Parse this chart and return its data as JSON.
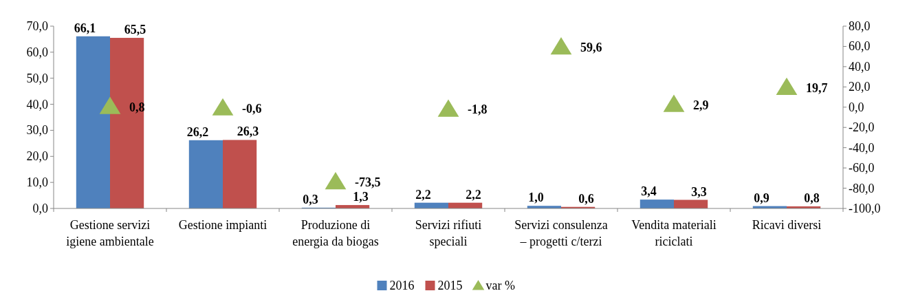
{
  "chart_data": {
    "type": "bar",
    "categories": [
      "Gestione servizi igiene ambientale",
      "Gestione impianti",
      "Produzione di energia da biogas",
      "Servizi rifiuti speciali",
      "Servizi consulenza – progetti c/terzi",
      "Vendita materiali riciclati",
      "Ricavi diversi"
    ],
    "series": [
      {
        "name": "2016",
        "color": "#4f81bd",
        "values": [
          66.1,
          26.2,
          0.3,
          2.2,
          1.0,
          3.4,
          0.9
        ],
        "value_labels": [
          "66,1",
          "26,2",
          "0,3",
          "2,2",
          "1,0",
          "3,4",
          "0,9"
        ]
      },
      {
        "name": "2015",
        "color": "#c0504d",
        "values": [
          65.5,
          26.3,
          1.3,
          2.2,
          0.6,
          3.3,
          0.8
        ],
        "value_labels": [
          "65,5",
          "26,3",
          "1,3",
          "2,2",
          "0,6",
          "3,3",
          "0,8"
        ]
      },
      {
        "name": "var %",
        "type": "scatter",
        "axis": "y2",
        "marker": "triangle",
        "color": "#9bbb59",
        "values": [
          0.8,
          -0.6,
          -73.5,
          -1.8,
          59.6,
          2.9,
          19.7
        ],
        "value_labels": [
          "0,8",
          "-0,6",
          "-73,5",
          "-1,8",
          "59,6",
          "2,9",
          "19,7"
        ]
      }
    ],
    "ylim": [
      0,
      70
    ],
    "yticks": [
      {
        "value": 0,
        "label": "0,0"
      },
      {
        "value": 10,
        "label": "10,0"
      },
      {
        "value": 20,
        "label": "20,0"
      },
      {
        "value": 30,
        "label": "30,0"
      },
      {
        "value": 40,
        "label": "40,0"
      },
      {
        "value": 50,
        "label": "50,0"
      },
      {
        "value": 60,
        "label": "60,0"
      },
      {
        "value": 70,
        "label": "70,0"
      }
    ],
    "y2lim": [
      -100,
      80
    ],
    "y2ticks": [
      {
        "value": -100,
        "label": "-100,0"
      },
      {
        "value": -80,
        "label": "-80,0"
      },
      {
        "value": -60,
        "label": "-60,0"
      },
      {
        "value": -40,
        "label": "-40,0"
      },
      {
        "value": -20,
        "label": "-20,0"
      },
      {
        "value": 0,
        "label": "0,0"
      },
      {
        "value": 20,
        "label": "20,0"
      },
      {
        "value": 40,
        "label": "40,0"
      },
      {
        "value": 60,
        "label": "60,0"
      },
      {
        "value": 80,
        "label": "80,0"
      }
    ],
    "grid": false,
    "legend": "bottom"
  }
}
